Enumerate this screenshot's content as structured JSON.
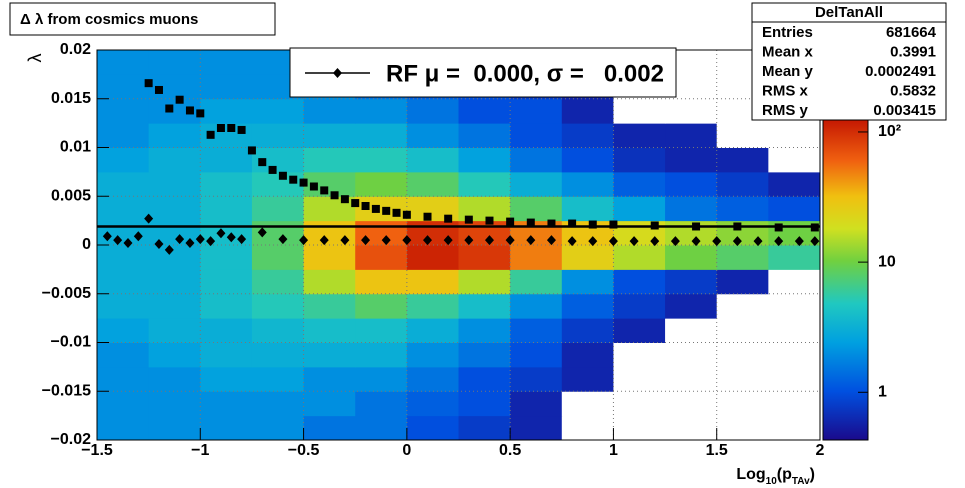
{
  "chart_data": {
    "type": "heatmap",
    "title": "Δ λ from cosmics muons",
    "y_label": "λ",
    "x_label_parts": [
      "Log",
      "10",
      "(p",
      "TAv",
      ")"
    ],
    "xlim": [
      -1.5,
      2
    ],
    "ylim": [
      -0.02,
      0.02
    ],
    "xticks": [
      {
        "value": -1.5,
        "label": "−1.5"
      },
      {
        "value": -1,
        "label": "−1"
      },
      {
        "value": -0.5,
        "label": "−0.5"
      },
      0,
      0.5,
      1,
      1.5,
      2
    ],
    "yticks": [
      {
        "value": -0.02,
        "label": "−0.02"
      },
      {
        "value": -0.015,
        "label": "−0.015"
      },
      {
        "value": -0.01,
        "label": "−0.01"
      },
      {
        "value": -0.005,
        "label": "−0.005"
      },
      0,
      0.005,
      0.01,
      0.015,
      0.02
    ],
    "grid": true,
    "zlim": [
      0.43,
      135
    ],
    "zlog": true,
    "zticks": [
      1,
      10,
      {
        "value": 100,
        "label": "10²"
      }
    ],
    "heatmap": {
      "xbins": [
        -1.5,
        -1.25,
        -1,
        -0.75,
        -0.5,
        -0.25,
        0,
        0.25,
        0.5,
        0.75,
        1,
        1.25,
        1.5,
        1.75,
        2
      ],
      "ybins": [
        -0.02,
        -0.0175,
        -0.015,
        -0.0125,
        -0.01,
        -0.0075,
        -0.005,
        -0.0025,
        0,
        0.0025,
        0.005,
        0.0075,
        0.01,
        0.0125,
        0.015,
        0.0175,
        0.02
      ],
      "z": [
        [
          2,
          2,
          2,
          2,
          1.5,
          1.5,
          1,
          0.8,
          0.6,
          0,
          0,
          0,
          0,
          0
        ],
        [
          2,
          2,
          2,
          2,
          2,
          1.5,
          1.2,
          1,
          0.6,
          0,
          0,
          0,
          0,
          0
        ],
        [
          2,
          2,
          2.5,
          2.5,
          2,
          2,
          1.5,
          1,
          0.8,
          0.6,
          0,
          0,
          0,
          0
        ],
        [
          2,
          2.5,
          3,
          3,
          3,
          3,
          2,
          1.5,
          1,
          0.6,
          0,
          0,
          0,
          0
        ],
        [
          2.5,
          3,
          3,
          3.5,
          4,
          4,
          3,
          2,
          1.2,
          0.8,
          0.6,
          0,
          0,
          0
        ],
        [
          3,
          3,
          4,
          5,
          6,
          8,
          6,
          4,
          2,
          1.2,
          0.8,
          0.6,
          0,
          0
        ],
        [
          3,
          3,
          4,
          6,
          15,
          30,
          30,
          15,
          6,
          2,
          1,
          0.8,
          0.6,
          0
        ],
        [
          3,
          3,
          4,
          8,
          30,
          70,
          110,
          90,
          50,
          25,
          15,
          10,
          8,
          6
        ],
        [
          3,
          3,
          4,
          8,
          30,
          60,
          100,
          80,
          50,
          30,
          20,
          15,
          12,
          10
        ],
        [
          3,
          3,
          4,
          6,
          15,
          25,
          25,
          15,
          8,
          4,
          2.5,
          1.5,
          1.2,
          1
        ],
        [
          3,
          3,
          4,
          5,
          8,
          10,
          8,
          5,
          3,
          2,
          1.2,
          1,
          0.8,
          0.6
        ],
        [
          2.5,
          3,
          3,
          4,
          5,
          5,
          4,
          2.5,
          1.5,
          1,
          0.7,
          0.6,
          0.6,
          0
        ],
        [
          2,
          2.5,
          3,
          3,
          3,
          3,
          2,
          1.5,
          1,
          0.8,
          0.6,
          0.6,
          0,
          0
        ],
        [
          2,
          2,
          2.5,
          2.5,
          2,
          2,
          1.5,
          1,
          1,
          0.6,
          0,
          0,
          0,
          0
        ],
        [
          2,
          2,
          2,
          2,
          2,
          1.5,
          1.2,
          1,
          0.8,
          0.6,
          0,
          0,
          0,
          0
        ],
        [
          2,
          2,
          2,
          2,
          1.5,
          1.5,
          1.2,
          1,
          0.8,
          0,
          0,
          0,
          0,
          0
        ]
      ]
    },
    "fit_line": 0.0019,
    "series": [
      {
        "marker": "square",
        "color": "#000000",
        "x": [
          -1.25,
          -1.2,
          -1.15,
          -1.1,
          -1.05,
          -1,
          -0.95,
          -0.9,
          -0.85,
          -0.8,
          -0.75,
          -0.7,
          -0.65,
          -0.6,
          -0.55,
          -0.5,
          -0.45,
          -0.4,
          -0.35,
          -0.3,
          -0.25,
          -0.2,
          -0.15,
          -0.1,
          -0.05,
          0,
          0.1,
          0.2,
          0.3,
          0.4,
          0.5,
          0.6,
          0.7,
          0.8,
          0.9,
          1,
          1.2,
          1.4,
          1.6,
          1.8,
          1.975
        ],
        "values": [
          0.0166,
          0.0159,
          0.014,
          0.0149,
          0.0138,
          0.0135,
          0.0113,
          0.012,
          0.012,
          0.0118,
          0.0097,
          0.0085,
          0.0077,
          0.0071,
          0.0067,
          0.0064,
          0.006,
          0.0056,
          0.0051,
          0.0047,
          0.0043,
          0.004,
          0.0037,
          0.0035,
          0.0033,
          0.0031,
          0.0029,
          0.0027,
          0.0026,
          0.0025,
          0.0024,
          0.0023,
          0.0022,
          0.0022,
          0.0021,
          0.0021,
          0.002,
          0.0019,
          0.0019,
          0.0018,
          0.0018
        ]
      },
      {
        "name": "RF μ =  0.000, σ =   0.002",
        "marker": "diamond",
        "color": "#000000",
        "x": [
          -1.45,
          -1.4,
          -1.35,
          -1.3,
          -1.25,
          -1.2,
          -1.15,
          -1.1,
          -1.05,
          -1,
          -0.95,
          -0.9,
          -0.85,
          -0.8,
          -0.7,
          -0.6,
          -0.5,
          -0.4,
          -0.3,
          -0.2,
          -0.1,
          0,
          0.1,
          0.2,
          0.3,
          0.4,
          0.5,
          0.6,
          0.7,
          0.8,
          0.9,
          1,
          1.1,
          1.2,
          1.3,
          1.4,
          1.5,
          1.6,
          1.7,
          1.8,
          1.9,
          1.975
        ],
        "values": [
          0.0009,
          0.0005,
          0.0002,
          0.0009,
          0.0027,
          0.0001,
          -0.0005,
          0.0006,
          0.0002,
          0.0006,
          0.0004,
          0.0012,
          0.0008,
          0.0006,
          0.0013,
          0.0006,
          0.0005,
          0.0005,
          0.0005,
          0.0005,
          0.0005,
          0.0005,
          0.0005,
          0.0005,
          0.0005,
          0.0005,
          0.0005,
          0.0005,
          0.0005,
          0.0004,
          0.0004,
          0.0004,
          0.0004,
          0.0004,
          0.0004,
          0.0004,
          0.0004,
          0.0004,
          0.0004,
          0.0004,
          0.0004,
          0.0004
        ]
      }
    ],
    "stats": {
      "title": "DelTanAll",
      "rows": [
        [
          "Entries",
          681664
        ],
        [
          "Mean x",
          0.3991
        ],
        [
          "Mean y",
          0.0002491
        ],
        [
          "RMS x",
          0.5832
        ],
        [
          "RMS y",
          0.003415
        ]
      ]
    }
  }
}
